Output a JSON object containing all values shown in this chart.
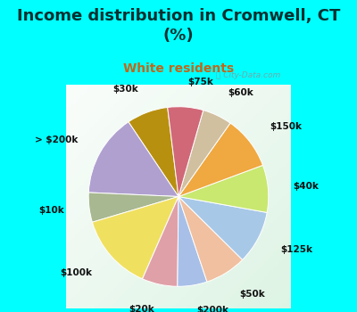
{
  "title": "Income distribution in Cromwell, CT\n(%)",
  "subtitle": "White residents",
  "background_color": "#00FFFF",
  "labels": [
    "$30k",
    "> $200k",
    "$10k",
    "$100k",
    "$20k",
    "$200k",
    "$50k",
    "$125k",
    "$40k",
    "$150k",
    "$60k",
    "$75k"
  ],
  "sizes": [
    7,
    14,
    5,
    13,
    6,
    5,
    7,
    9,
    8,
    9,
    5,
    6
  ],
  "colors": [
    "#b89010",
    "#b0a0d0",
    "#a8b890",
    "#f0e060",
    "#e0a0a8",
    "#a8c0e8",
    "#f0c0a0",
    "#a8c8e8",
    "#c8e870",
    "#f0a840",
    "#d0c0a0",
    "#d06878"
  ],
  "startangle": 97,
  "label_fontsize": 7.5,
  "title_fontsize": 13,
  "subtitle_fontsize": 10,
  "title_color": "#003030",
  "subtitle_color": "#c06818"
}
